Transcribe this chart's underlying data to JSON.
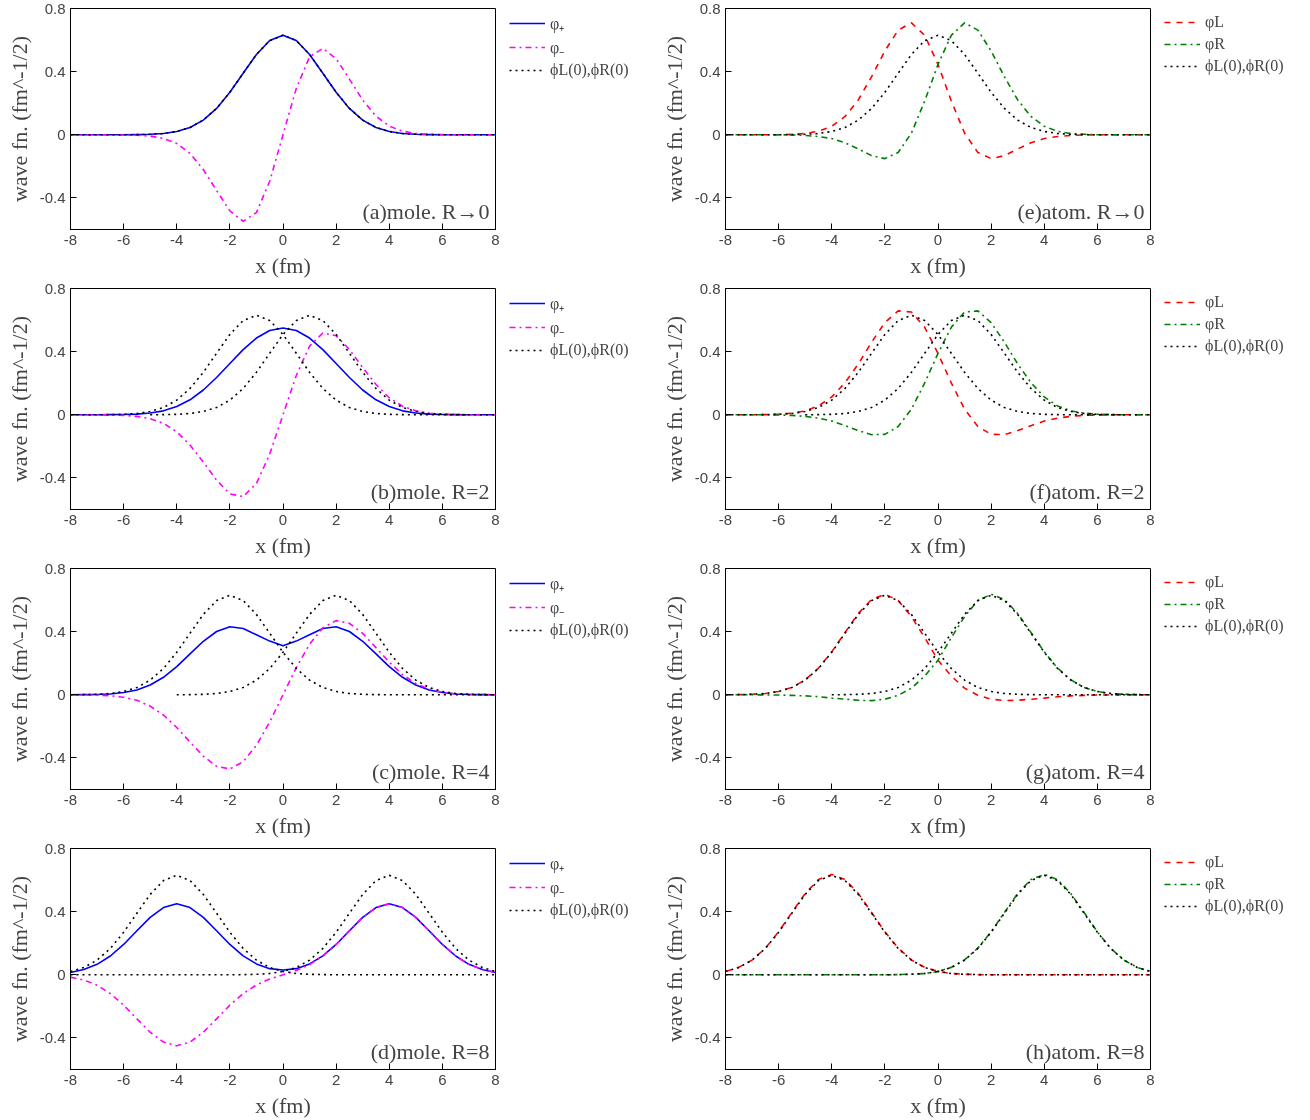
{
  "chart_data": [
    {
      "type": "line",
      "x": [
        -8,
        -7.5,
        -7,
        -6.5,
        -6,
        -5.5,
        -5,
        -4.5,
        -4,
        -3.5,
        -3,
        -2.5,
        -2,
        -1.5,
        -1,
        -0.5,
        0,
        0.5,
        1,
        1.5,
        2,
        2.5,
        3,
        3.5,
        4,
        4.5,
        5,
        5.5,
        6,
        6.5,
        7,
        7.5,
        8
      ],
      "xlim": [
        -8,
        8
      ],
      "ylim": [
        -0.6,
        0.8
      ],
      "xticks": [
        -8,
        -6,
        -4,
        -2,
        0,
        2,
        4,
        6,
        8
      ],
      "yticks": [
        -0.4,
        0,
        0.4,
        0.8
      ],
      "xlabel": "x (fm)",
      "ylabel": "wave fn. (fm^-1/2)",
      "legend": "right",
      "grid": false,
      "annotations": [
        "(a)mole. R→0"
      ],
      "series": [
        {
          "name": "φ₊",
          "color": "#0000ff",
          "line_style": "solid",
          "values": [
            0,
            0,
            0,
            0,
            0,
            0.001,
            0.003,
            0.008,
            0.021,
            0.046,
            0.093,
            0.167,
            0.269,
            0.39,
            0.509,
            0.597,
            0.63,
            0.597,
            0.509,
            0.39,
            0.269,
            0.167,
            0.093,
            0.046,
            0.021,
            0.008,
            0.003,
            0.001,
            0,
            0,
            0,
            0,
            0
          ]
        },
        {
          "name": "φ₋",
          "color": "#ff00ff",
          "line_style": "dashdot",
          "values": [
            0,
            0,
            0,
            0,
            -0.001,
            -0.003,
            -0.008,
            -0.023,
            -0.055,
            -0.118,
            -0.22,
            -0.353,
            -0.482,
            -0.548,
            -0.493,
            -0.294,
            0,
            0.294,
            0.493,
            0.548,
            0.482,
            0.353,
            0.22,
            0.118,
            0.055,
            0.023,
            0.008,
            0.003,
            0.001,
            0,
            0,
            0,
            0
          ]
        },
        {
          "name": "ϕL(0),ϕR(0)",
          "color": "#000000",
          "line_style": "dotted",
          "values": [
            0,
            0,
            0,
            0,
            0,
            0.001,
            0.003,
            0.008,
            0.021,
            0.046,
            0.093,
            0.167,
            0.269,
            0.39,
            0.509,
            0.597,
            0.63,
            0.597,
            0.509,
            0.39,
            0.269,
            0.167,
            0.093,
            0.046,
            0.021,
            0.008,
            0.003,
            0.001,
            0,
            0,
            0,
            0,
            0
          ]
        }
      ]
    },
    {
      "type": "line",
      "x": [
        -8,
        -7.5,
        -7,
        -6.5,
        -6,
        -5.5,
        -5,
        -4.5,
        -4,
        -3.5,
        -3,
        -2.5,
        -2,
        -1.5,
        -1,
        -0.5,
        0,
        0.5,
        1,
        1.5,
        2,
        2.5,
        3,
        3.5,
        4,
        4.5,
        5,
        5.5,
        6,
        6.5,
        7,
        7.5,
        8
      ],
      "xlim": [
        -8,
        8
      ],
      "ylim": [
        -0.6,
        0.8
      ],
      "xticks": [
        -8,
        -6,
        -4,
        -2,
        0,
        2,
        4,
        6,
        8
      ],
      "yticks": [
        -0.4,
        0,
        0.4,
        0.8
      ],
      "xlabel": "x (fm)",
      "ylabel": "wave fn. (fm^-1/2)",
      "legend": "right",
      "grid": false,
      "annotations": [
        "(e)atom. R→0"
      ],
      "series": [
        {
          "name": "φL",
          "color": "#ff0000",
          "line_style": "dashed",
          "values": [
            0,
            0,
            0,
            0,
            0,
            0.003,
            0.008,
            0.022,
            0.054,
            0.116,
            0.221,
            0.368,
            0.531,
            0.663,
            0.709,
            0.63,
            0.446,
            0.214,
            0.011,
            -0.112,
            -0.151,
            -0.132,
            -0.09,
            -0.051,
            -0.024,
            -0.011,
            -0.004,
            -0.001,
            0,
            0,
            0,
            0,
            0
          ]
        },
        {
          "name": "φR",
          "color": "#008000",
          "line_style": "dashdot",
          "values": [
            0,
            0,
            0,
            0,
            0,
            -0.001,
            -0.004,
            -0.011,
            -0.024,
            -0.051,
            -0.09,
            -0.132,
            -0.151,
            -0.112,
            0.011,
            0.214,
            0.446,
            0.63,
            0.709,
            0.663,
            0.531,
            0.368,
            0.221,
            0.116,
            0.054,
            0.022,
            0.008,
            0.003,
            0,
            0,
            0,
            0,
            0
          ]
        },
        {
          "name": "ϕL(0),ϕR(0)",
          "color": "#000000",
          "line_style": "dotted",
          "values": [
            0,
            0,
            0,
            0,
            0,
            0.001,
            0.003,
            0.008,
            0.021,
            0.046,
            0.093,
            0.167,
            0.269,
            0.39,
            0.509,
            0.597,
            0.63,
            0.597,
            0.509,
            0.39,
            0.269,
            0.167,
            0.093,
            0.046,
            0.021,
            0.008,
            0.003,
            0.001,
            0,
            0,
            0,
            0,
            0
          ]
        }
      ]
    },
    {
      "type": "line",
      "x": [
        -8,
        -7.5,
        -7,
        -6.5,
        -6,
        -5.5,
        -5,
        -4.5,
        -4,
        -3.5,
        -3,
        -2.5,
        -2,
        -1.5,
        -1,
        -0.5,
        0,
        0.5,
        1,
        1.5,
        2,
        2.5,
        3,
        3.5,
        4,
        4.5,
        5,
        5.5,
        6,
        6.5,
        7,
        7.5,
        8
      ],
      "xlim": [
        -8,
        8
      ],
      "ylim": [
        -0.6,
        0.8
      ],
      "xticks": [
        -8,
        -6,
        -4,
        -2,
        0,
        2,
        4,
        6,
        8
      ],
      "yticks": [
        -0.4,
        0,
        0.4,
        0.8
      ],
      "xlabel": "x (fm)",
      "ylabel": "wave fn. (fm^-1/2)",
      "legend": "right",
      "grid": false,
      "annotations": [
        "(b)mole. R=2"
      ],
      "series": [
        {
          "name": "φ₊",
          "color": "#0000ff",
          "line_style": "solid",
          "values": [
            0,
            0,
            0,
            0.001,
            0.002,
            0.004,
            0.011,
            0.025,
            0.052,
            0.095,
            0.157,
            0.236,
            0.325,
            0.413,
            0.486,
            0.534,
            0.55,
            0.534,
            0.486,
            0.413,
            0.325,
            0.236,
            0.157,
            0.095,
            0.052,
            0.025,
            0.011,
            0.004,
            0.002,
            0.001,
            0,
            0,
            0
          ]
        },
        {
          "name": "φ₋",
          "color": "#ff00ff",
          "line_style": "dashdot",
          "values": [
            0,
            0,
            0,
            -0.001,
            -0.004,
            -0.01,
            -0.025,
            -0.054,
            -0.108,
            -0.192,
            -0.299,
            -0.414,
            -0.501,
            -0.518,
            -0.435,
            -0.249,
            0,
            0.249,
            0.435,
            0.518,
            0.501,
            0.414,
            0.299,
            0.192,
            0.108,
            0.054,
            0.025,
            0.01,
            0.004,
            0.001,
            0,
            0,
            0
          ]
        },
        {
          "name": "ϕL(0),ϕR(0)",
          "color": "#000000",
          "line_style": "dotted",
          "values": [
            0,
            0,
            0,
            0.001,
            0.003,
            0.008,
            0.021,
            0.046,
            0.093,
            0.167,
            0.269,
            0.39,
            0.509,
            0.597,
            0.63,
            0.597,
            0.509,
            0.39,
            0.269,
            0.167,
            0.093,
            0.046,
            0.021,
            0.008,
            0.003,
            0.001,
            0,
            0,
            0,
            0,
            0,
            0,
            0
          ]
        },
        {
          "color": "#000000",
          "line_style": "dotted",
          "x": [
            -5,
            -4.5,
            -4,
            -3.5,
            -3,
            -2.5,
            -2,
            -1.5,
            -1,
            -0.5,
            0,
            0.5,
            1,
            1.5,
            2,
            2.5,
            3,
            3.5,
            4,
            4.5,
            5,
            5.5,
            6,
            6.5,
            7
          ],
          "values": [
            0,
            0.001,
            0.003,
            0.008,
            0.021,
            0.046,
            0.093,
            0.167,
            0.269,
            0.39,
            0.509,
            0.597,
            0.63,
            0.597,
            0.509,
            0.39,
            0.269,
            0.167,
            0.093,
            0.046,
            0.021,
            0.008,
            0.003,
            0.001,
            0
          ]
        }
      ]
    },
    {
      "type": "line",
      "x": [
        -8,
        -7.5,
        -7,
        -6.5,
        -6,
        -5.5,
        -5,
        -4.5,
        -4,
        -3.5,
        -3,
        -2.5,
        -2,
        -1.5,
        -1,
        -0.5,
        0,
        0.5,
        1,
        1.5,
        2,
        2.5,
        3,
        3.5,
        4,
        4.5,
        5,
        5.5,
        6,
        6.5,
        7,
        7.5,
        8
      ],
      "xlim": [
        -8,
        8
      ],
      "ylim": [
        -0.6,
        0.8
      ],
      "xticks": [
        -8,
        -6,
        -4,
        -2,
        0,
        2,
        4,
        6,
        8
      ],
      "yticks": [
        -0.4,
        0,
        0.4,
        0.8
      ],
      "xlabel": "x (fm)",
      "ylabel": "wave fn. (fm^-1/2)",
      "legend": "right",
      "grid": false,
      "annotations": [
        "(f)atom. R=2"
      ],
      "series": [
        {
          "name": "φL",
          "color": "#ff0000",
          "line_style": "dashed",
          "values": [
            0,
            0,
            0,
            0.001,
            0.004,
            0.01,
            0.025,
            0.056,
            0.113,
            0.203,
            0.322,
            0.46,
            0.584,
            0.658,
            0.651,
            0.554,
            0.389,
            0.202,
            0.036,
            -0.074,
            -0.124,
            -0.126,
            -0.1,
            -0.069,
            -0.04,
            -0.021,
            -0.01,
            -0.004,
            -0.001,
            0,
            0,
            0,
            0
          ]
        },
        {
          "name": "φR",
          "color": "#008000",
          "line_style": "dashdot",
          "values": [
            0,
            0,
            0,
            0,
            -0.001,
            -0.004,
            -0.01,
            -0.021,
            -0.04,
            -0.069,
            -0.1,
            -0.126,
            -0.124,
            -0.074,
            0.036,
            0.202,
            0.389,
            0.554,
            0.651,
            0.658,
            0.584,
            0.46,
            0.322,
            0.203,
            0.113,
            0.056,
            0.025,
            0.01,
            0.004,
            0.001,
            0,
            0,
            0
          ]
        },
        {
          "name": "ϕL(0),ϕR(0)",
          "color": "#000000",
          "line_style": "dotted",
          "values": [
            0,
            0,
            0,
            0.001,
            0.003,
            0.008,
            0.021,
            0.046,
            0.093,
            0.167,
            0.269,
            0.39,
            0.509,
            0.597,
            0.63,
            0.597,
            0.509,
            0.39,
            0.269,
            0.167,
            0.093,
            0.046,
            0.021,
            0.008,
            0.003,
            0.001,
            0,
            0,
            0,
            0,
            0,
            0,
            0
          ]
        },
        {
          "color": "#000000",
          "line_style": "dotted",
          "x": [
            -5,
            -4.5,
            -4,
            -3.5,
            -3,
            -2.5,
            -2,
            -1.5,
            -1,
            -0.5,
            0,
            0.5,
            1,
            1.5,
            2,
            2.5,
            3,
            3.5,
            4,
            4.5,
            5,
            5.5,
            6,
            6.5,
            7
          ],
          "values": [
            0,
            0.001,
            0.003,
            0.008,
            0.021,
            0.046,
            0.093,
            0.167,
            0.269,
            0.39,
            0.509,
            0.597,
            0.63,
            0.597,
            0.509,
            0.39,
            0.269,
            0.167,
            0.093,
            0.046,
            0.021,
            0.008,
            0.003,
            0.001,
            0
          ]
        }
      ]
    },
    {
      "type": "line",
      "x": [
        -8,
        -7.5,
        -7,
        -6.5,
        -6,
        -5.5,
        -5,
        -4.5,
        -4,
        -3.5,
        -3,
        -2.5,
        -2,
        -1.5,
        -1,
        -0.5,
        0,
        0.5,
        1,
        1.5,
        2,
        2.5,
        3,
        3.5,
        4,
        4.5,
        5,
        5.5,
        6,
        6.5,
        7,
        7.5,
        8
      ],
      "xlim": [
        -8,
        8
      ],
      "ylim": [
        -0.6,
        0.8
      ],
      "xticks": [
        -8,
        -6,
        -4,
        -2,
        0,
        2,
        4,
        6,
        8
      ],
      "yticks": [
        -0.4,
        0,
        0.4,
        0.8
      ],
      "xlabel": "x (fm)",
      "ylabel": "wave fn. (fm^-1/2)",
      "legend": "right",
      "grid": false,
      "annotations": [
        "(c)mole. R=4"
      ],
      "series": [
        {
          "name": "φ₊",
          "color": "#0000ff",
          "line_style": "solid",
          "values": [
            0,
            0.001,
            0.002,
            0.005,
            0.014,
            0.03,
            0.062,
            0.111,
            0.178,
            0.259,
            0.339,
            0.401,
            0.431,
            0.42,
            0.38,
            0.34,
            0.31,
            0.34,
            0.38,
            0.42,
            0.431,
            0.401,
            0.339,
            0.259,
            0.178,
            0.111,
            0.062,
            0.03,
            0.014,
            0.005,
            0.002,
            0.001,
            0
          ]
        },
        {
          "name": "φ₋",
          "color": "#ff00ff",
          "line_style": "dashdot",
          "values": [
            0,
            -0.001,
            -0.002,
            -0.006,
            -0.016,
            -0.035,
            -0.072,
            -0.128,
            -0.207,
            -0.299,
            -0.389,
            -0.453,
            -0.47,
            -0.424,
            -0.32,
            -0.172,
            0,
            0.172,
            0.32,
            0.424,
            0.47,
            0.453,
            0.389,
            0.299,
            0.207,
            0.128,
            0.072,
            0.035,
            0.016,
            0.006,
            0.002,
            0.001,
            0
          ]
        },
        {
          "name": "ϕL(0),ϕR(0)",
          "color": "#000000",
          "line_style": "dotted",
          "values": [
            0,
            0.001,
            0.003,
            0.008,
            0.021,
            0.046,
            0.093,
            0.167,
            0.269,
            0.39,
            0.509,
            0.597,
            0.63,
            0.597,
            0.509,
            0.39,
            0.269,
            0.167,
            0.093,
            0.046,
            0.021,
            0.008,
            0.003,
            0.001,
            0,
            0,
            0,
            0,
            0,
            0,
            0,
            0,
            0
          ]
        },
        {
          "color": "#000000",
          "line_style": "dotted",
          "x": [
            -4,
            -3.5,
            -3,
            -2.5,
            -2,
            -1.5,
            -1,
            -0.5,
            0,
            0.5,
            1,
            1.5,
            2,
            2.5,
            3,
            3.5,
            4,
            4.5,
            5,
            5.5,
            6,
            6.5,
            7,
            7.5,
            8
          ],
          "values": [
            0,
            0.001,
            0.003,
            0.008,
            0.021,
            0.046,
            0.093,
            0.167,
            0.269,
            0.39,
            0.509,
            0.597,
            0.63,
            0.597,
            0.509,
            0.39,
            0.269,
            0.167,
            0.093,
            0.046,
            0.021,
            0.008,
            0.003,
            0.001,
            0
          ]
        }
      ]
    },
    {
      "type": "line",
      "x": [
        -8,
        -7.5,
        -7,
        -6.5,
        -6,
        -5.5,
        -5,
        -4.5,
        -4,
        -3.5,
        -3,
        -2.5,
        -2,
        -1.5,
        -1,
        -0.5,
        0,
        0.5,
        1,
        1.5,
        2,
        2.5,
        3,
        3.5,
        4,
        4.5,
        5,
        5.5,
        6,
        6.5,
        7,
        7.5,
        8
      ],
      "xlim": [
        -8,
        8
      ],
      "ylim": [
        -0.6,
        0.8
      ],
      "xticks": [
        -8,
        -6,
        -4,
        -2,
        0,
        2,
        4,
        6,
        8
      ],
      "yticks": [
        -0.4,
        0,
        0.4,
        0.8
      ],
      "xlabel": "x (fm)",
      "ylabel": "wave fn. (fm^-1/2)",
      "legend": "right",
      "grid": false,
      "annotations": [
        "(g)atom. R=4"
      ],
      "series": [
        {
          "name": "φL",
          "color": "#ff0000",
          "line_style": "dashed",
          "values": [
            0,
            0.001,
            0.003,
            0.008,
            0.021,
            0.046,
            0.095,
            0.169,
            0.272,
            0.395,
            0.515,
            0.604,
            0.637,
            0.597,
            0.495,
            0.362,
            0.219,
            0.119,
            0.042,
            -0.003,
            -0.028,
            -0.037,
            -0.035,
            -0.028,
            -0.021,
            -0.012,
            -0.007,
            -0.004,
            -0.001,
            -0.001,
            0,
            0,
            0
          ]
        },
        {
          "name": "φR",
          "color": "#008000",
          "line_style": "dashdot",
          "values": [
            0,
            0,
            0,
            -0.001,
            -0.001,
            -0.004,
            -0.007,
            -0.012,
            -0.021,
            -0.028,
            -0.035,
            -0.037,
            -0.028,
            -0.003,
            0.042,
            0.119,
            0.219,
            0.362,
            0.495,
            0.597,
            0.637,
            0.604,
            0.515,
            0.395,
            0.272,
            0.169,
            0.095,
            0.046,
            0.021,
            0.008,
            0.003,
            0.001,
            0
          ]
        },
        {
          "name": "ϕL(0),ϕR(0)",
          "color": "#000000",
          "line_style": "dotted",
          "values": [
            0,
            0.001,
            0.003,
            0.008,
            0.021,
            0.046,
            0.093,
            0.167,
            0.269,
            0.39,
            0.509,
            0.597,
            0.63,
            0.597,
            0.509,
            0.39,
            0.269,
            0.167,
            0.093,
            0.046,
            0.021,
            0.008,
            0.003,
            0.001,
            0,
            0,
            0,
            0,
            0,
            0,
            0,
            0,
            0
          ]
        },
        {
          "color": "#000000",
          "line_style": "dotted",
          "x": [
            -4,
            -3.5,
            -3,
            -2.5,
            -2,
            -1.5,
            -1,
            -0.5,
            0,
            0.5,
            1,
            1.5,
            2,
            2.5,
            3,
            3.5,
            4,
            4.5,
            5,
            5.5,
            6,
            6.5,
            7,
            7.5,
            8
          ],
          "values": [
            0,
            0.001,
            0.003,
            0.008,
            0.021,
            0.046,
            0.093,
            0.167,
            0.269,
            0.39,
            0.509,
            0.597,
            0.63,
            0.597,
            0.509,
            0.39,
            0.269,
            0.167,
            0.093,
            0.046,
            0.021,
            0.008,
            0.003,
            0.001,
            0
          ]
        }
      ]
    },
    {
      "type": "line",
      "x": [
        -8,
        -7.5,
        -7,
        -6.5,
        -6,
        -5.5,
        -5,
        -4.5,
        -4,
        -3.5,
        -3,
        -2.5,
        -2,
        -1.5,
        -1,
        -0.5,
        0,
        0.5,
        1,
        1.5,
        2,
        2.5,
        3,
        3.5,
        4,
        4.5,
        5,
        5.5,
        6,
        6.5,
        7,
        7.5,
        8
      ],
      "xlim": [
        -8,
        8
      ],
      "ylim": [
        -0.6,
        0.8
      ],
      "xticks": [
        -8,
        -6,
        -4,
        -2,
        0,
        2,
        4,
        6,
        8
      ],
      "yticks": [
        -0.4,
        0,
        0.4,
        0.8
      ],
      "xlabel": "x (fm)",
      "ylabel": "wave fn. (fm^-1/2)",
      "legend": "right",
      "grid": false,
      "annotations": [
        "(d)mole. R=8"
      ],
      "series": [
        {
          "name": "φ₊",
          "color": "#0000ff",
          "line_style": "solid",
          "values": [
            0.015,
            0.033,
            0.066,
            0.119,
            0.192,
            0.279,
            0.364,
            0.426,
            0.45,
            0.426,
            0.364,
            0.279,
            0.192,
            0.12,
            0.069,
            0.039,
            0.03,
            0.039,
            0.069,
            0.12,
            0.192,
            0.279,
            0.364,
            0.426,
            0.45,
            0.426,
            0.364,
            0.279,
            0.192,
            0.119,
            0.066,
            0.033,
            0.015
          ]
        },
        {
          "name": "φ₋",
          "color": "#ff00ff",
          "line_style": "dashdot",
          "values": [
            -0.015,
            -0.033,
            -0.066,
            -0.119,
            -0.192,
            -0.279,
            -0.364,
            -0.426,
            -0.45,
            -0.426,
            -0.364,
            -0.279,
            -0.192,
            -0.119,
            -0.064,
            -0.027,
            0,
            0.027,
            0.064,
            0.119,
            0.192,
            0.279,
            0.364,
            0.426,
            0.45,
            0.426,
            0.364,
            0.279,
            0.192,
            0.119,
            0.066,
            0.033,
            0.015
          ]
        },
        {
          "name": "ϕL(0),ϕR(0)",
          "color": "#000000",
          "line_style": "dotted",
          "values": [
            0.021,
            0.046,
            0.093,
            0.167,
            0.269,
            0.39,
            0.509,
            0.597,
            0.63,
            0.597,
            0.509,
            0.39,
            0.269,
            0.167,
            0.093,
            0.046,
            0.021,
            0.008,
            0.003,
            0.001,
            0,
            0,
            0,
            0,
            0,
            0,
            0,
            0,
            0,
            0,
            0,
            0,
            0
          ]
        },
        {
          "color": "#000000",
          "line_style": "dotted",
          "values": [
            0,
            0,
            0,
            0,
            0,
            0,
            0,
            0,
            0,
            0,
            0,
            0,
            0,
            0.001,
            0.003,
            0.008,
            0.021,
            0.046,
            0.093,
            0.167,
            0.269,
            0.39,
            0.509,
            0.597,
            0.63,
            0.597,
            0.509,
            0.39,
            0.269,
            0.167,
            0.093,
            0.046,
            0.021
          ]
        }
      ]
    },
    {
      "type": "line",
      "x": [
        -8,
        -7.5,
        -7,
        -6.5,
        -6,
        -5.5,
        -5,
        -4.5,
        -4,
        -3.5,
        -3,
        -2.5,
        -2,
        -1.5,
        -1,
        -0.5,
        0,
        0.5,
        1,
        1.5,
        2,
        2.5,
        3,
        3.5,
        4,
        4.5,
        5,
        5.5,
        6,
        6.5,
        7,
        7.5,
        8
      ],
      "xlim": [
        -8,
        8
      ],
      "ylim": [
        -0.6,
        0.8
      ],
      "xticks": [
        -8,
        -6,
        -4,
        -2,
        0,
        2,
        4,
        6,
        8
      ],
      "yticks": [
        -0.4,
        0,
        0.4,
        0.8
      ],
      "xlabel": "x (fm)",
      "ylabel": "wave fn. (fm^-1/2)",
      "legend": "right",
      "grid": false,
      "annotations": [
        "(h)atom. R=8"
      ],
      "series": [
        {
          "name": "φL",
          "color": "#ff0000",
          "line_style": "dashed",
          "values": [
            0.021,
            0.047,
            0.093,
            0.168,
            0.272,
            0.395,
            0.515,
            0.603,
            0.636,
            0.603,
            0.515,
            0.395,
            0.272,
            0.169,
            0.094,
            0.047,
            0.021,
            0.008,
            0.004,
            0.001,
            0,
            0,
            0,
            0,
            0,
            0,
            0,
            0,
            0,
            0,
            0,
            0,
            0
          ]
        },
        {
          "name": "φR",
          "color": "#008000",
          "line_style": "dashdot",
          "values": [
            0,
            0,
            0,
            0,
            0,
            0,
            0,
            0,
            0,
            0,
            0,
            0,
            0,
            0.001,
            0.004,
            0.008,
            0.021,
            0.047,
            0.094,
            0.169,
            0.272,
            0.395,
            0.515,
            0.603,
            0.636,
            0.603,
            0.515,
            0.395,
            0.272,
            0.168,
            0.093,
            0.047,
            0.021
          ]
        },
        {
          "name": "ϕL(0),ϕR(0)",
          "color": "#000000",
          "line_style": "dotted",
          "values": [
            0.021,
            0.046,
            0.093,
            0.167,
            0.269,
            0.39,
            0.509,
            0.597,
            0.63,
            0.597,
            0.509,
            0.39,
            0.269,
            0.167,
            0.093,
            0.046,
            0.021,
            0.008,
            0.003,
            0.001,
            0,
            0,
            0,
            0,
            0,
            0,
            0,
            0,
            0,
            0,
            0,
            0,
            0
          ]
        },
        {
          "color": "#000000",
          "line_style": "dotted",
          "values": [
            0,
            0,
            0,
            0,
            0,
            0,
            0,
            0,
            0,
            0,
            0,
            0,
            0,
            0.001,
            0.003,
            0.008,
            0.021,
            0.046,
            0.093,
            0.167,
            0.269,
            0.39,
            0.509,
            0.597,
            0.63,
            0.597,
            0.509,
            0.39,
            0.269,
            0.167,
            0.093,
            0.046,
            0.021
          ]
        }
      ]
    }
  ]
}
